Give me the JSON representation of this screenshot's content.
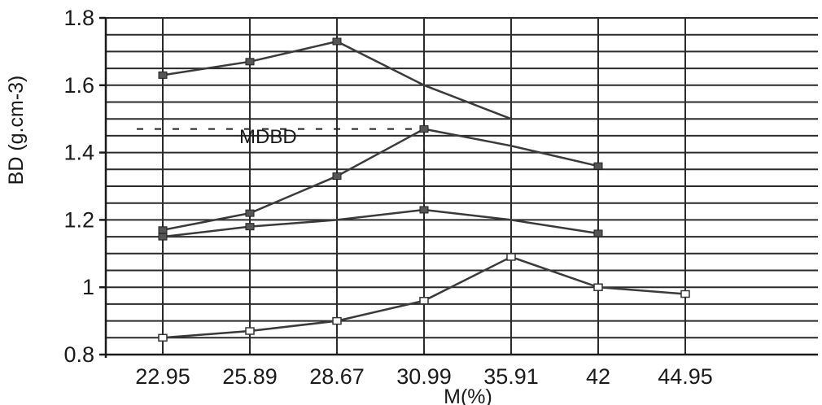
{
  "chart_data": {
    "type": "line",
    "xlabel": "M(%)",
    "ylabel": "BD (g.cm-3)",
    "categories": [
      "22.95",
      "25.89",
      "28.67",
      "30.99",
      "35.91",
      "42",
      "44.95"
    ],
    "yticks": [
      "0.8",
      "1",
      "1.2",
      "1.4",
      "1.6",
      "1.8"
    ],
    "ylim": [
      0.8,
      1.8
    ],
    "grid": true,
    "annotation": "MDBD",
    "reference_line_y": 1.47,
    "series": [
      {
        "values": [
          1.63,
          1.67,
          1.73,
          1.6,
          1.5,
          null,
          null
        ],
        "markers": [
          true,
          true,
          true,
          false,
          false,
          false,
          false
        ],
        "marker_style": "filled"
      },
      {
        "values": [
          1.17,
          1.22,
          1.33,
          1.47,
          1.42,
          1.36,
          null
        ],
        "markers": [
          true,
          true,
          true,
          true,
          false,
          true,
          false
        ],
        "marker_style": "filled"
      },
      {
        "values": [
          1.15,
          1.18,
          1.2,
          1.23,
          1.2,
          1.16,
          null
        ],
        "markers": [
          true,
          true,
          false,
          true,
          false,
          true,
          false
        ],
        "marker_style": "filled"
      },
      {
        "values": [
          0.85,
          0.87,
          0.9,
          0.96,
          1.09,
          1.0,
          0.98
        ],
        "markers": [
          true,
          true,
          true,
          true,
          true,
          true,
          true
        ],
        "marker_style": "open"
      }
    ]
  }
}
